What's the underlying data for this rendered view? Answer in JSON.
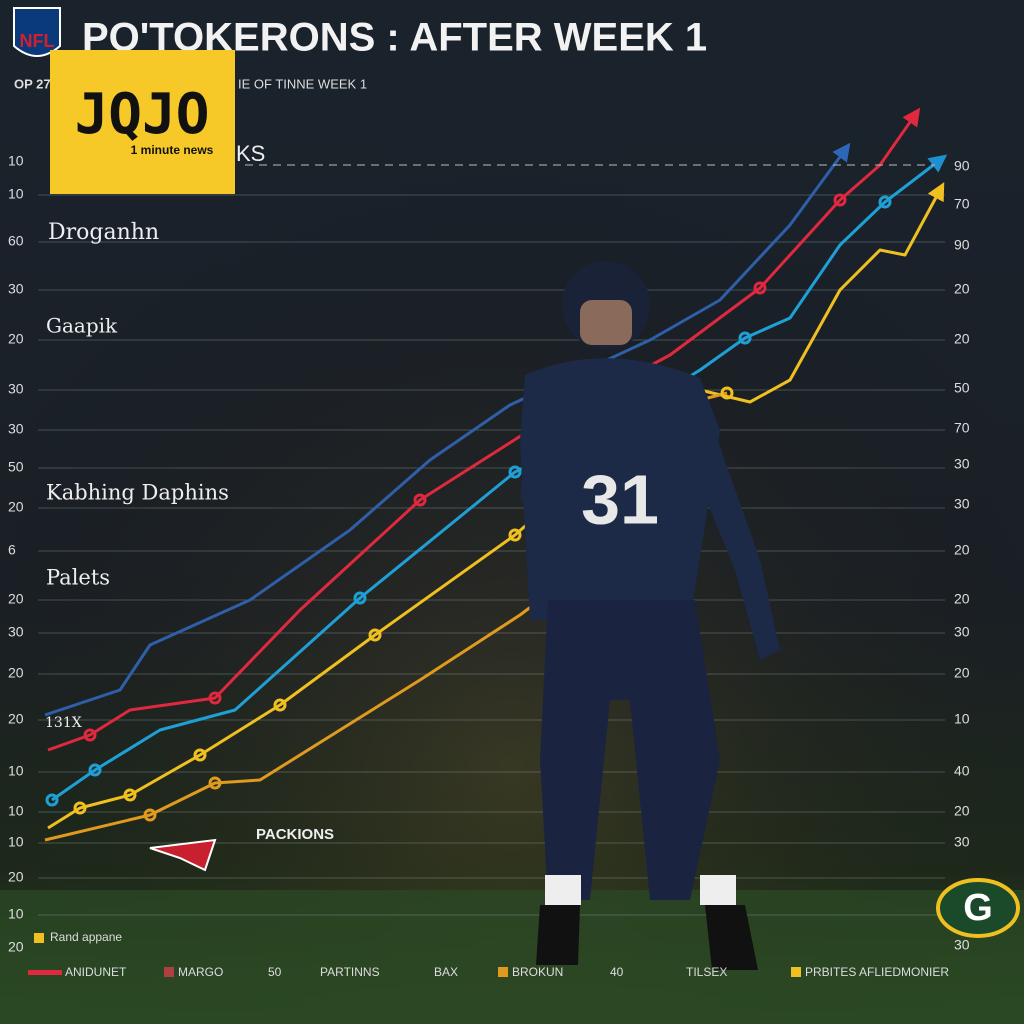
{
  "header": {
    "logo": "NFL",
    "title": "PO'TOKERONS : AFTER WEEK 1",
    "subtitle_left": "OP 27",
    "subtitle_right": "IE OF TINNE WEEK 1",
    "partial_label": "KS"
  },
  "badge": {
    "brand": "JQJO",
    "tagline": "1 minute news"
  },
  "labels": [
    "Droganhn",
    "Gaapik",
    "Kabhing Daphins",
    "Palets",
    "131X",
    "PACKIONS"
  ],
  "left_axis": [
    10,
    10,
    60,
    30,
    20,
    30,
    30,
    50,
    20,
    6,
    20,
    30,
    20,
    20,
    10,
    10,
    10,
    20,
    10,
    20
  ],
  "right_axis": [
    90,
    70,
    90,
    20,
    20,
    50,
    70,
    30,
    30,
    20,
    20,
    30,
    20,
    10,
    40,
    20,
    30,
    30
  ],
  "legend_top": "Rand appane",
  "legend": [
    "ANIDUNET",
    "MARGO",
    "50",
    "PARTINNS",
    "BAX",
    "BROKUN",
    "40",
    "TILSEX",
    "PRBITES AFLIEDMONIER"
  ]
}
